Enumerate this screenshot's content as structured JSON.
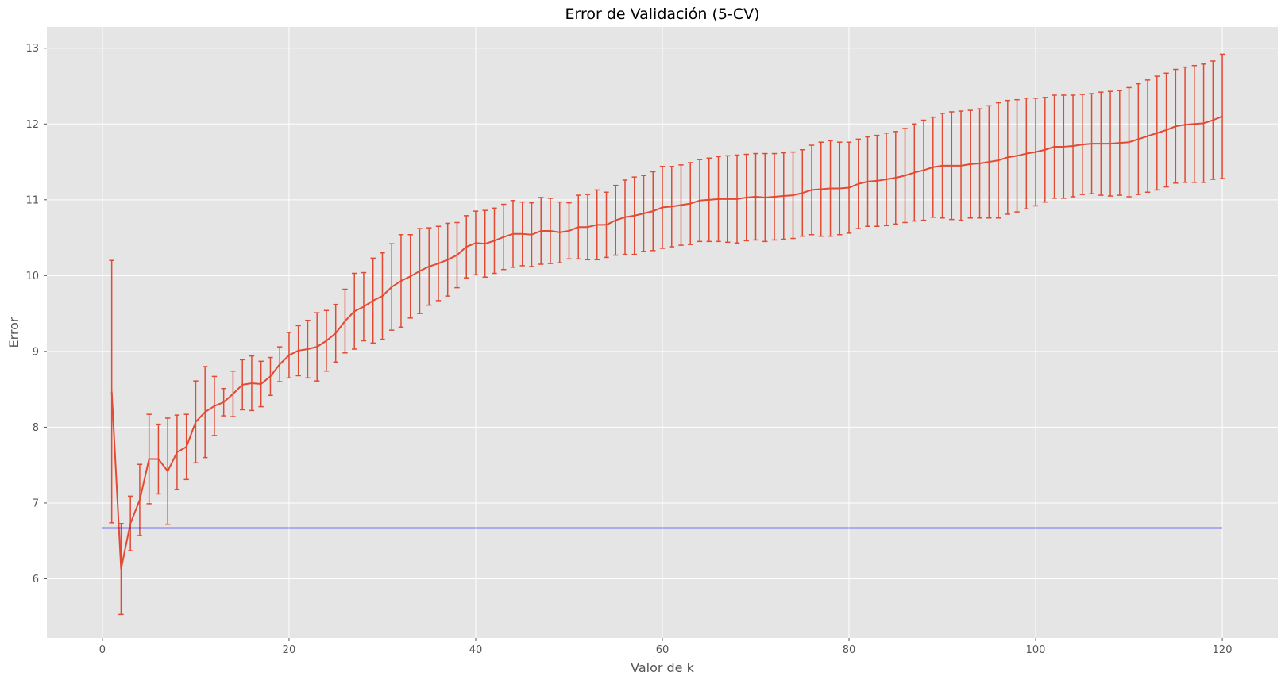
{
  "chart_data": {
    "type": "line",
    "title": "Error de Validación (5-CV)",
    "xlabel": "Valor de k",
    "ylabel": "Error",
    "xlim": [
      -5.95,
      125.95
    ],
    "ylim": [
      5.22,
      13.28
    ],
    "xticks": [
      0,
      20,
      40,
      60,
      80,
      100,
      120
    ],
    "yticks": [
      6,
      7,
      8,
      9,
      10,
      11,
      12,
      13
    ],
    "grid": true,
    "legend": "none",
    "colors": {
      "background": "#e5e5e5",
      "grid": "#ffffff",
      "series": "#e24a33",
      "baseline": "#0000ff"
    },
    "series": [
      {
        "kind": "errorbar",
        "x": [
          1,
          2,
          3,
          4,
          5,
          6,
          7,
          8,
          9,
          10,
          11,
          12,
          13,
          14,
          15,
          16,
          17,
          18,
          19,
          20,
          21,
          22,
          23,
          24,
          25,
          26,
          27,
          28,
          29,
          30,
          31,
          32,
          33,
          34,
          35,
          36,
          37,
          38,
          39,
          40,
          41,
          42,
          43,
          44,
          45,
          46,
          47,
          48,
          49,
          50,
          51,
          52,
          53,
          54,
          55,
          56,
          57,
          58,
          59,
          60,
          61,
          62,
          63,
          64,
          65,
          66,
          67,
          68,
          69,
          70,
          71,
          72,
          73,
          74,
          75,
          76,
          77,
          78,
          79,
          80,
          81,
          82,
          83,
          84,
          85,
          86,
          87,
          88,
          89,
          90,
          91,
          92,
          93,
          94,
          95,
          96,
          97,
          98,
          99,
          100,
          101,
          102,
          103,
          104,
          105,
          106,
          107,
          108,
          109,
          110,
          111,
          112,
          113,
          114,
          115,
          116,
          117,
          118,
          119,
          120
        ],
        "y": [
          8.47,
          6.13,
          6.73,
          7.04,
          7.58,
          7.58,
          7.42,
          7.67,
          7.74,
          8.07,
          8.2,
          8.28,
          8.33,
          8.44,
          8.56,
          8.58,
          8.57,
          8.67,
          8.83,
          8.95,
          9.01,
          9.03,
          9.06,
          9.14,
          9.24,
          9.4,
          9.53,
          9.59,
          9.67,
          9.73,
          9.85,
          9.93,
          9.99,
          10.06,
          10.12,
          10.16,
          10.21,
          10.27,
          10.38,
          10.43,
          10.42,
          10.46,
          10.51,
          10.55,
          10.55,
          10.54,
          10.59,
          10.59,
          10.57,
          10.59,
          10.64,
          10.64,
          10.67,
          10.67,
          10.73,
          10.77,
          10.79,
          10.82,
          10.85,
          10.9,
          10.91,
          10.93,
          10.95,
          10.99,
          11.0,
          11.01,
          11.01,
          11.01,
          11.03,
          11.04,
          11.03,
          11.04,
          11.05,
          11.06,
          11.09,
          11.13,
          11.14,
          11.15,
          11.15,
          11.16,
          11.21,
          11.24,
          11.25,
          11.27,
          11.29,
          11.32,
          11.36,
          11.39,
          11.43,
          11.45,
          11.45,
          11.45,
          11.47,
          11.48,
          11.5,
          11.52,
          11.56,
          11.58,
          11.61,
          11.63,
          11.66,
          11.7,
          11.7,
          11.71,
          11.73,
          11.74,
          11.74,
          11.74,
          11.75,
          11.76,
          11.8,
          11.84,
          11.88,
          11.92,
          11.97,
          11.99,
          12.0,
          12.01,
          12.05,
          12.1
        ],
        "yerr": [
          1.73,
          0.6,
          0.36,
          0.47,
          0.59,
          0.46,
          0.7,
          0.49,
          0.43,
          0.54,
          0.6,
          0.39,
          0.18,
          0.3,
          0.33,
          0.36,
          0.3,
          0.25,
          0.23,
          0.3,
          0.33,
          0.38,
          0.45,
          0.4,
          0.38,
          0.42,
          0.5,
          0.45,
          0.56,
          0.57,
          0.57,
          0.61,
          0.55,
          0.56,
          0.51,
          0.49,
          0.48,
          0.43,
          0.41,
          0.42,
          0.44,
          0.43,
          0.43,
          0.44,
          0.42,
          0.42,
          0.44,
          0.43,
          0.4,
          0.37,
          0.42,
          0.43,
          0.46,
          0.43,
          0.46,
          0.49,
          0.51,
          0.5,
          0.52,
          0.54,
          0.53,
          0.53,
          0.54,
          0.54,
          0.55,
          0.56,
          0.57,
          0.58,
          0.57,
          0.57,
          0.58,
          0.57,
          0.57,
          0.57,
          0.57,
          0.59,
          0.62,
          0.63,
          0.61,
          0.6,
          0.59,
          0.59,
          0.6,
          0.61,
          0.61,
          0.62,
          0.64,
          0.66,
          0.66,
          0.69,
          0.71,
          0.72,
          0.71,
          0.72,
          0.74,
          0.76,
          0.75,
          0.74,
          0.73,
          0.71,
          0.69,
          0.68,
          0.68,
          0.67,
          0.66,
          0.66,
          0.68,
          0.69,
          0.69,
          0.72,
          0.73,
          0.74,
          0.75,
          0.75,
          0.75,
          0.76,
          0.77,
          0.78,
          0.78,
          0.82
        ]
      },
      {
        "kind": "hline",
        "x": [
          0,
          120
        ],
        "y": [
          6.67,
          6.67
        ]
      }
    ]
  }
}
